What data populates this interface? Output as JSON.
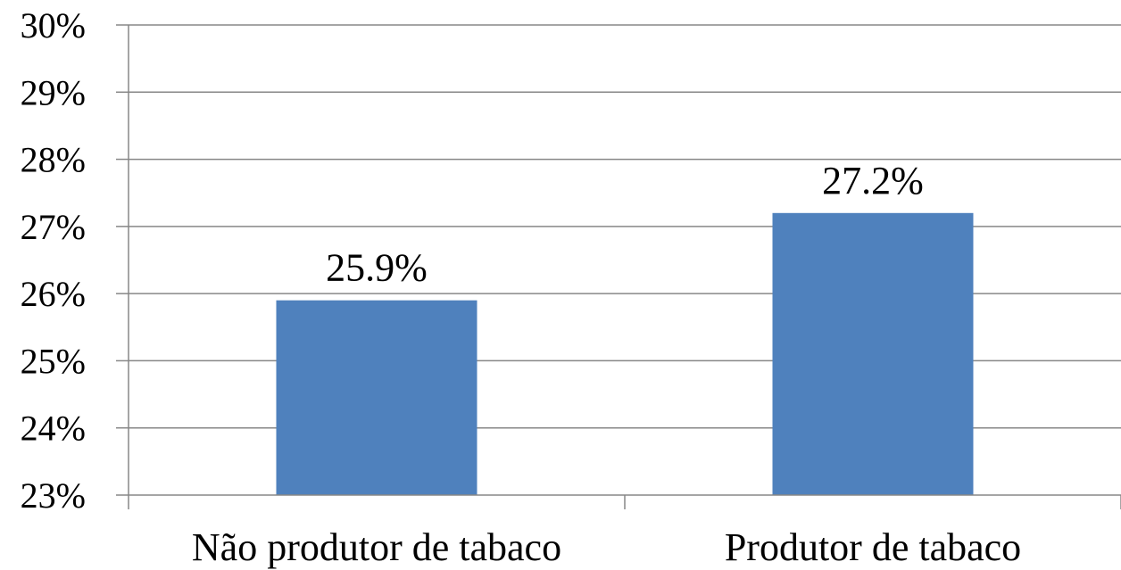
{
  "chart_data": {
    "type": "bar",
    "categories": [
      "Não produtor de tabaco",
      "Produtor de tabaco"
    ],
    "values": [
      25.9,
      27.2
    ],
    "data_labels": [
      "25.9%",
      "27.2%"
    ],
    "ylim": [
      23,
      30
    ],
    "yticks": [
      23,
      24,
      25,
      26,
      27,
      28,
      29,
      30
    ],
    "ytick_labels": [
      "23%",
      "24%",
      "25%",
      "26%",
      "27%",
      "28%",
      "29%",
      "30%"
    ],
    "grid": true,
    "bar_color": "#4F81BD",
    "grid_color": "#878787",
    "title": "",
    "xlabel": "",
    "ylabel": ""
  }
}
